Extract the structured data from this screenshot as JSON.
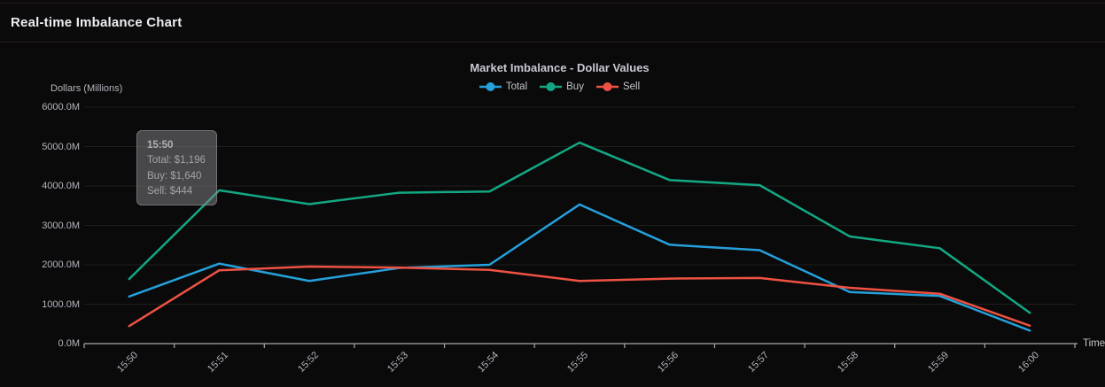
{
  "header": {
    "title": "Real-time Imbalance Chart"
  },
  "chart_data": {
    "type": "line",
    "title": "Market Imbalance - Dollar Values",
    "y_axis_title": "Dollars (Millions)",
    "x_axis_title": "Time",
    "ylim": [
      0,
      6000
    ],
    "grid": "horizontal",
    "legend_position": "top-center",
    "background_color": "#0a0a0b",
    "categories": [
      "15:50",
      "15:51",
      "15:52",
      "15:53",
      "15:54",
      "15:55",
      "15:56",
      "15:57",
      "15:58",
      "15:59",
      "16:00"
    ],
    "y_ticks": [
      "0.0M",
      "1000.0M",
      "2000.0M",
      "3000.0M",
      "4000.0M",
      "5000.0M",
      "6000.0M"
    ],
    "series": [
      {
        "name": "Total",
        "color": "#25a0da",
        "values": [
          1196,
          2030,
          1590,
          1920,
          2000,
          3530,
          2510,
          2370,
          1310,
          1210,
          330
        ]
      },
      {
        "name": "Buy",
        "color": "#13a883",
        "values": [
          1640,
          3890,
          3540,
          3830,
          3860,
          5100,
          4150,
          4020,
          2720,
          2420,
          780
        ]
      },
      {
        "name": "Sell",
        "color": "#ef5242",
        "values": [
          444,
          1860,
          1955,
          1930,
          1870,
          1590,
          1650,
          1665,
          1415,
          1265,
          455
        ]
      }
    ],
    "tooltip": {
      "header": "15:50",
      "lines": [
        "Total: $1,196",
        "Buy: $1,640",
        "Sell: $444"
      ]
    }
  }
}
